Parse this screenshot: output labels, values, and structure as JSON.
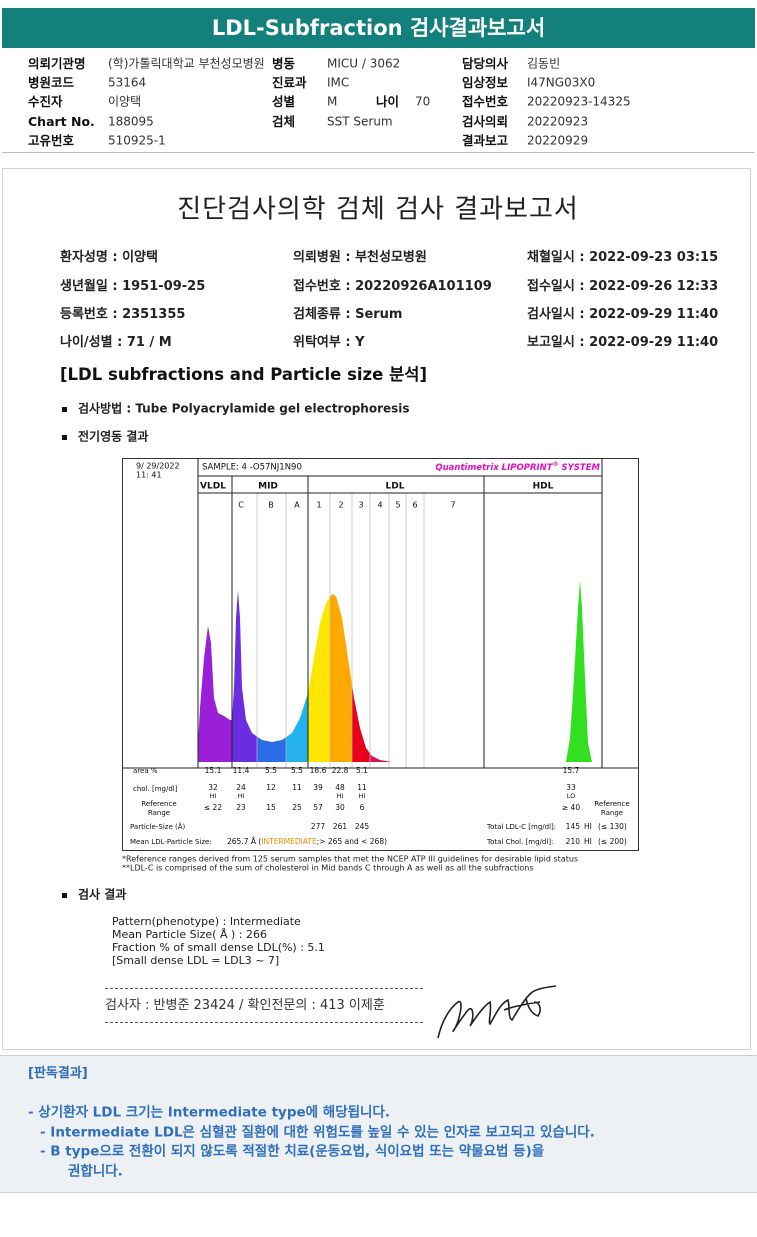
{
  "header": {
    "title": "LDL-Subfraction 검사결과보고서"
  },
  "info": [
    {
      "label": "의뢰기관명",
      "value": "(학)가톨릭대학교 부천성모병원"
    },
    {
      "label": "병동",
      "value": "MICU / 3062"
    },
    {
      "label": "담당의사",
      "value": "김동빈"
    },
    {
      "label": "병원코드",
      "value": "53164"
    },
    {
      "label": "진료과",
      "value": "IMC"
    },
    {
      "label": "임상정보",
      "value": "I47NG03X0"
    },
    {
      "label": "수진자",
      "value": "이양택"
    },
    {
      "label": "성별",
      "value": "M"
    },
    {
      "label": "나이",
      "value": "70"
    },
    {
      "label": "접수번호",
      "value": "20220923-14325"
    },
    {
      "label": "Chart No.",
      "value": "188095"
    },
    {
      "label": "검체",
      "value": "SST Serum"
    },
    {
      "label": "검사의뢰",
      "value": "20220923"
    },
    {
      "label": "고유번호",
      "value": "510925-1"
    },
    {
      "label": "결과보고",
      "value": "20220929"
    }
  ],
  "report": {
    "title": "진단검사의학 검체 검사 결과보고서",
    "fields": [
      [
        "환자성명 : 이양택",
        "의뢰병원 : 부천성모병원",
        "채혈일시 : 2022-09-23 03:15"
      ],
      [
        "생년월일 : 1951-09-25",
        "접수번호 : 20220926A101109",
        "접수일시 : 2022-09-26 12:33"
      ],
      [
        "등록번호 : 2351355",
        "검체종류 : Serum",
        "검사일시 : 2022-09-29 11:40"
      ],
      [
        "나이/성별 : 71 / M",
        "위탁여부 : Y",
        "보고일시 : 2022-09-29 11:40"
      ]
    ],
    "section": "[LDL subfractions and Particle size 분석]",
    "method": "검사방법 : Tube Polyacrylamide gel electrophoresis",
    "electro": "전기영동 결과",
    "footnotes": [
      "*Reference ranges derived from 125 serum samples that met the NCEP ATP III guidelines for desirable lipid status",
      "**LDL-C is comprised of the sum of cholesterol in Mid bands C through A as well as all the subfractions"
    ],
    "result_heading": "검사 결과",
    "results": [
      "Pattern(phenotype) : Intermediate",
      "Mean Particle Size( Å ) : 266",
      "Fraction % of small dense LDL(%) : 5.1",
      "[Small dense LDL = LDL3 ~ 7]"
    ],
    "signature": "검사자 : 반병준  23424  /  확인전문의 : 413 이제훈"
  },
  "chart": {
    "date": "9/ 29/2022",
    "time": "11: 41",
    "sample": "SAMPLE:   4 -O57NJ1N90",
    "brand": "Quantimetrix LIPOPRINT",
    "brand_mark": "®",
    "brand_end": " SYSTEM",
    "groups": [
      "VLDL",
      "MID",
      "LDL",
      "HDL"
    ],
    "bands": [
      "C",
      "B",
      "A",
      "1",
      "2",
      "3",
      "4",
      "5",
      "6",
      "7"
    ],
    "row_labels": {
      "area": "area %",
      "chol": "chol. [mg/dl]",
      "ref": [
        "Reference",
        "Range"
      ],
      "size": "Particle-Size (Å)",
      "mean": "Mean LDL-Particle Size:"
    },
    "columns": [
      {
        "area": 15.1,
        "chol": 32,
        "flag": "HI",
        "ref": "≤ 22"
      },
      {
        "area": 11.4,
        "chol": 24,
        "flag": "HI",
        "ref": 23
      },
      {
        "area": 5.5,
        "chol": 12,
        "ref": 15
      },
      {
        "area": 5.5,
        "chol": 11,
        "ref": 25
      },
      {
        "area": 18.6,
        "chol": 39,
        "ref": 57,
        "size": 277
      },
      {
        "area": 22.8,
        "chol": 48,
        "flag": "HI",
        "ref": 30,
        "size": 261
      },
      {
        "area": 5.1,
        "chol": 11,
        "flag": "HI",
        "ref": 6,
        "size": 245
      },
      {
        "area": 15.7,
        "chol": 33,
        "flag": "LO",
        "ref": "≥ 40"
      }
    ],
    "mean_value": "265.7 Å (",
    "mean_class": "INTERMEDIATE",
    "mean_range": ";> 265 and < 268)",
    "totals": [
      {
        "label": "Total LDL-C [mg/dl]:",
        "value": 145,
        "flag": "HI",
        "ref": "(≤ 130)"
      },
      {
        "label": "Total Chol. [mg/dl]:",
        "value": 210,
        "flag": "HI",
        "ref": "(≤ 200)"
      }
    ]
  },
  "interpretation": {
    "heading": "[판독결과]",
    "lines": [
      "- 상기환자 LDL 크기는 Intermediate type에 해당됩니다.",
      "- Intermediate LDL은 심혈관 질환에 대한 위험도를 높일 수 있는 인자로 보고되고 있습니다.",
      "- B type으로 전환이 되지 않도록 적절한 치료(운동요법, 식이요법 또는 약물요법 등)을",
      "권합니다."
    ]
  }
}
